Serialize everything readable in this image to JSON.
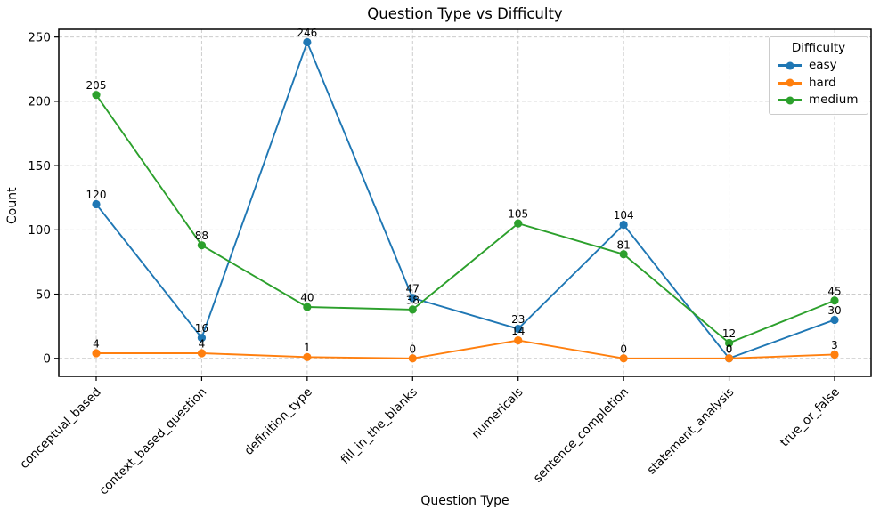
{
  "chart_data": {
    "type": "line",
    "title": "Question Type vs Difficulty",
    "xlabel": "Question Type",
    "ylabel": "Count",
    "categories": [
      "conceptual_based",
      "context_based_question",
      "definition_type",
      "fill_in_the_blanks",
      "numericals",
      "sentence_completion",
      "statement_analysis",
      "true_or_false"
    ],
    "series": [
      {
        "name": "easy",
        "color": "#1f77b4",
        "values": [
          120,
          16,
          246,
          47,
          23,
          104,
          0,
          30
        ]
      },
      {
        "name": "hard",
        "color": "#ff7f0e",
        "values": [
          4,
          4,
          1,
          0,
          14,
          0,
          0,
          3
        ]
      },
      {
        "name": "medium",
        "color": "#2ca02c",
        "values": [
          205,
          88,
          40,
          38,
          105,
          81,
          12,
          45
        ]
      }
    ],
    "yticks": [
      0,
      50,
      100,
      150,
      200,
      250
    ],
    "ylim": [
      -14,
      256
    ],
    "legend": {
      "title": "Difficulty",
      "position": "upper right"
    },
    "grid": true,
    "grid_style": "dashed",
    "grid_color": "#cccccc",
    "point_labels": true,
    "marker": "circle"
  }
}
